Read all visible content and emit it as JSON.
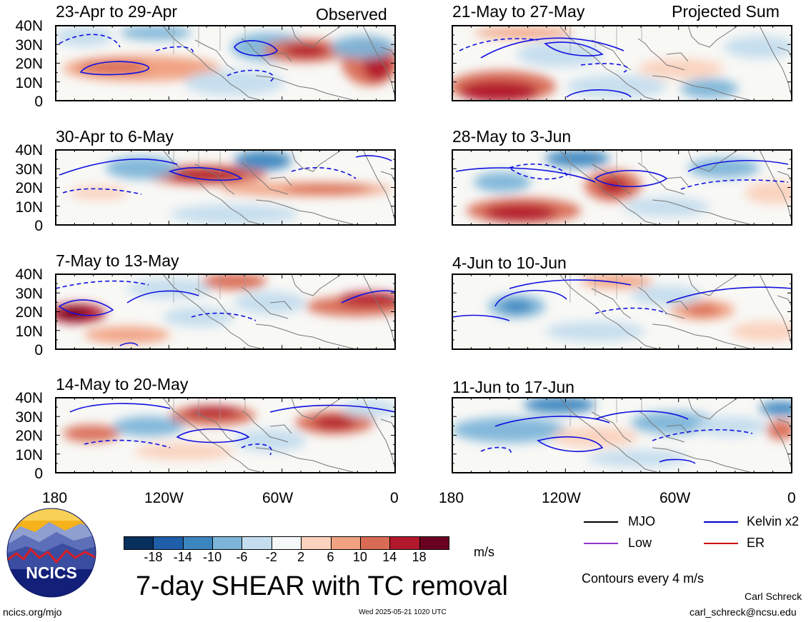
{
  "panels": [
    {
      "label": "23-Apr to 29-Apr",
      "tag": "Observed"
    },
    {
      "label": "21-May to 27-May",
      "tag": "Projected Sum"
    },
    {
      "label": "30-Apr to 6-May",
      "tag": ""
    },
    {
      "label": "28-May to 3-Jun",
      "tag": ""
    },
    {
      "label": "7-May to 13-May",
      "tag": ""
    },
    {
      "label": "4-Jun to 10-Jun",
      "tag": ""
    },
    {
      "label": "14-May to 20-May",
      "tag": ""
    },
    {
      "label": "11-Jun to 17-Jun",
      "tag": ""
    }
  ],
  "lat_ticks": [
    "40N",
    "30N",
    "20N",
    "10N",
    "0"
  ],
  "lon_ticks": [
    "180",
    "120W",
    "60W",
    "0"
  ],
  "colorbar": {
    "ticks": [
      "-18",
      "-14",
      "-10",
      "-6",
      "-2",
      "2",
      "6",
      "10",
      "14",
      "18"
    ],
    "colors": [
      "#08305f",
      "#1f5ea8",
      "#3c86c0",
      "#7db5d9",
      "#c4ddee",
      "#f5f8f9",
      "#fbd2bd",
      "#f1a283",
      "#d96b54",
      "#b2182b",
      "#6a0020"
    ],
    "unit": "m/s"
  },
  "legend": [
    {
      "label": "MJO",
      "color": "#000000"
    },
    {
      "label": "Kelvin x2",
      "color": "#0000cc"
    },
    {
      "label": "Low",
      "color": "#9933cc"
    },
    {
      "label": "ER",
      "color": "#cc0000"
    }
  ],
  "contour_note": "Contours every 4 m/s",
  "title": "7-day SHEAR with TC removal",
  "logo_text": "NCICS",
  "footer": {
    "url": "ncics.org/mjo",
    "timestamp": "Wed 2025-05-21 1020 UTC",
    "author": "Carl Schreck",
    "email": "carl_schreck@ncsu.edu"
  }
}
